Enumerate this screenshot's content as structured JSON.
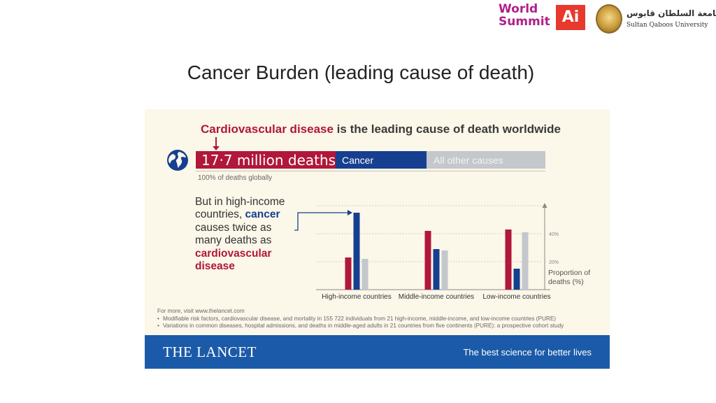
{
  "header": {
    "logo_left_line1": "World",
    "logo_left_line2": "Summit",
    "logo_left_box": "Ai",
    "logo_right_arabic": "جامعة السلطان قابوس",
    "logo_right_english": "Sultan Qaboos University"
  },
  "slide": {
    "title": "Cancer Burden (leading cause of death)"
  },
  "infographic": {
    "headline_highlight": "Cardiovascular disease",
    "headline_rest": " is the leading cause of death worldwide",
    "global_bar": {
      "segments": [
        {
          "label": "17·7 million deaths",
          "share": 0.4,
          "color": "#b0173a"
        },
        {
          "label": "Cancer",
          "share": 0.26,
          "color": "#163f8f"
        },
        {
          "label": "All other causes",
          "share": 0.34,
          "color": "#c4c7cc"
        }
      ],
      "note": "100% of deaths globally"
    },
    "callout": {
      "part1": "But in high-income countries, ",
      "highlight_cancer": "cancer",
      "part2": " causes twice as many deaths as ",
      "highlight_cvd": "cardiovascular disease"
    },
    "references": {
      "intro": "For more, visit www.thelancet.com",
      "items": [
        "Modifiable risk factors, cardiovascular disease, and mortality in 155 722 individuals from 21 high-income, middle-income, and low-income countries (PURE)",
        "Variations in common diseases, hospital admissions, and deaths in middle-aged adults in 21 countries from five continents (PURE): a prospective cohort study"
      ]
    },
    "footer": {
      "brand": "THE LANCET",
      "tagline": "The best science for better lives"
    }
  },
  "chart_data": {
    "type": "bar",
    "categories": [
      "High-income countries",
      "Middle-income countries",
      "Low-income countries"
    ],
    "series": [
      {
        "values": [
          23,
          42,
          43
        ],
        "color": "#b0173a"
      },
      {
        "values": [
          55,
          29,
          15
        ],
        "color": "#163f8f"
      },
      {
        "values": [
          22,
          28,
          41
        ],
        "color": "#c4c7cc"
      }
    ],
    "y_ticks": [
      {
        "value": 20,
        "label": "20%"
      },
      {
        "value": 40,
        "label": "40%"
      }
    ],
    "ylim": [
      0,
      60
    ],
    "ylabel_line1": "Proportion of",
    "ylabel_line2": "deaths (%)",
    "grid": true
  }
}
